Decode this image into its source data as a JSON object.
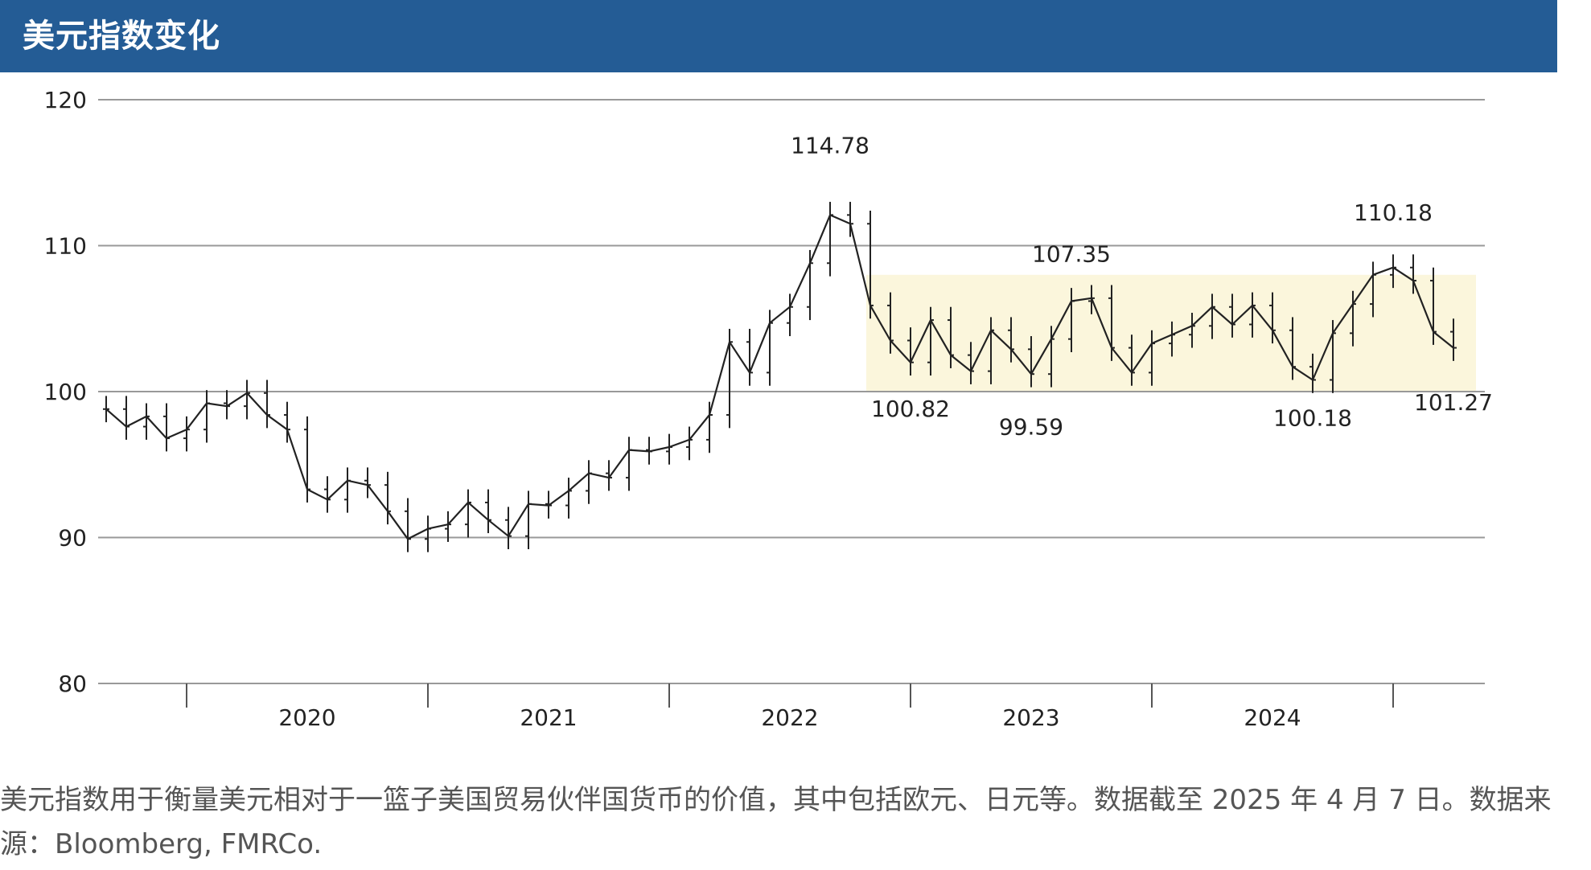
{
  "header": {
    "title": "美元指数变化"
  },
  "caption": "美元指数用于衡量美元相对于一篮子美国贸易伙伴国货币的价值，其中包括欧元、日元等。数据截至 2025 年 4 月 7 日。数据来源：Bloomberg, FMRCo.",
  "colors": {
    "header_bg": "#245c95",
    "line": "#222222",
    "band": "#fbf6dc",
    "grid": "#999999"
  },
  "chart_data": {
    "type": "line",
    "title": "美元指数变化",
    "xlabel": "",
    "ylabel": "",
    "ylim": [
      80,
      120
    ],
    "yticks": [
      "120",
      "110",
      "100",
      "90",
      "80"
    ],
    "xtick_labels": [
      "2020",
      "2021",
      "2022",
      "2023",
      "2024"
    ],
    "grid": true,
    "highlight_band": {
      "x_range": [
        "2022-10",
        "2025-04"
      ],
      "y_range": [
        100,
        108
      ]
    },
    "annotations": [
      {
        "label": "114.78",
        "x": "2022-09",
        "y": 114.78
      },
      {
        "label": "100.82",
        "x": "2023-01",
        "y": 100.82
      },
      {
        "label": "107.35",
        "x": "2023-09",
        "y": 107.35
      },
      {
        "label": "99.59",
        "x": "2023-07",
        "y": 99.59
      },
      {
        "label": "110.18",
        "x": "2025-01",
        "y": 110.18
      },
      {
        "label": "100.18",
        "x": "2024-09",
        "y": 100.18
      },
      {
        "label": "101.27",
        "x": "2025-04",
        "y": 101.27
      }
    ],
    "series": [
      {
        "x": [
          "2019-09",
          "2019-10",
          "2019-11",
          "2019-12",
          "2020-01",
          "2020-02",
          "2020-03",
          "2020-04",
          "2020-05",
          "2020-06",
          "2020-07",
          "2020-08",
          "2020-09",
          "2020-10",
          "2020-11",
          "2020-12",
          "2021-01",
          "2021-02",
          "2021-03",
          "2021-04",
          "2021-05",
          "2021-06",
          "2021-07",
          "2021-08",
          "2021-09",
          "2021-10",
          "2021-11",
          "2021-12",
          "2022-01",
          "2022-02",
          "2022-03",
          "2022-04",
          "2022-05",
          "2022-06",
          "2022-07",
          "2022-08",
          "2022-09",
          "2022-10",
          "2022-11",
          "2022-12",
          "2023-01",
          "2023-02",
          "2023-03",
          "2023-04",
          "2023-05",
          "2023-06",
          "2023-07",
          "2023-08",
          "2023-09",
          "2023-10",
          "2023-11",
          "2023-12",
          "2024-01",
          "2024-02",
          "2024-03",
          "2024-04",
          "2024-05",
          "2024-06",
          "2024-07",
          "2024-08",
          "2024-09",
          "2024-10",
          "2024-11",
          "2024-12",
          "2025-01",
          "2025-02",
          "2025-03",
          "2025-04"
        ],
        "values": [
          98.8,
          97.6,
          98.3,
          96.8,
          97.4,
          99.2,
          99.0,
          99.9,
          98.4,
          97.4,
          93.3,
          92.6,
          93.9,
          93.6,
          91.8,
          89.9,
          90.6,
          90.9,
          92.4,
          91.2,
          90.1,
          92.3,
          92.2,
          93.2,
          94.4,
          94.1,
          96.0,
          95.9,
          96.2,
          96.7,
          98.4,
          103.4,
          101.3,
          104.7,
          105.8,
          108.8,
          112.1,
          111.5,
          105.9,
          103.5,
          102.0,
          104.9,
          102.5,
          101.4,
          104.2,
          102.9,
          101.2,
          103.6,
          106.2,
          106.4,
          103.0,
          101.3,
          103.3,
          103.9,
          104.5,
          105.8,
          104.6,
          105.9,
          104.2,
          101.7,
          100.8,
          104.0,
          106.0,
          108.0,
          108.5,
          107.6,
          104.1,
          103.0
        ]
      }
    ]
  }
}
